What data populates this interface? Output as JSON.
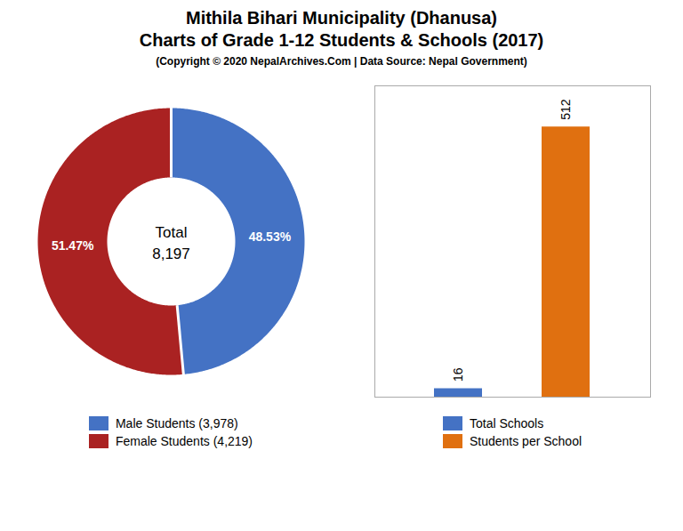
{
  "title": "Mithila Bihari Municipality (Dhanusa)\nCharts of Grade 1-12 Students & Schools (2017)",
  "subtitle": "(Copyright © 2020 NepalArchives.Com | Data Source: Nepal Government)",
  "chart_data": [
    {
      "type": "pie",
      "categories": [
        "Male Students (3,978)",
        "Female Students (4,219)"
      ],
      "values": [
        48.53,
        51.47
      ],
      "value_labels": [
        "48.53%",
        "51.47%"
      ],
      "colors": [
        "#4472c4",
        "#aa2222"
      ],
      "data_labels": true,
      "legend": "bottom",
      "annotations": [
        "Total",
        "8,197"
      ]
    },
    {
      "type": "bar",
      "categories": [
        "Total Schools",
        "Students per School"
      ],
      "values": [
        16,
        512
      ],
      "colors": [
        "#4472c4",
        "#e07010"
      ],
      "ylim": [
        0,
        590
      ],
      "yticks": [],
      "tick_labels": false,
      "data_labels": true,
      "legend": "bottom",
      "grid": false
    }
  ]
}
